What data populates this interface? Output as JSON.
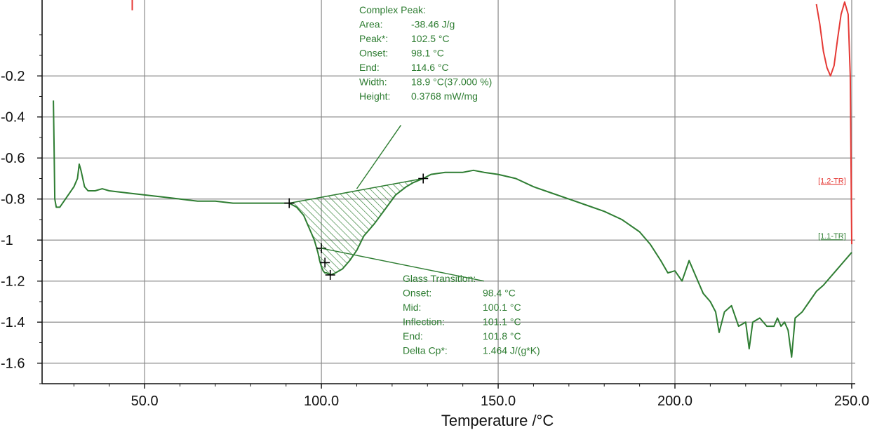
{
  "chart_data": {
    "type": "line",
    "xlabel": "Temperature /°C",
    "ylabel": "",
    "xlim": [
      21,
      251
    ],
    "ylim": [
      -1.7,
      0.17
    ],
    "x_ticks": [
      50,
      100,
      150,
      200,
      250
    ],
    "x_tick_labels": [
      "50.0",
      "100.0",
      "150.0",
      "200.0",
      "250.0"
    ],
    "y_ticks": [
      -0.2,
      -0.4,
      -0.6,
      -0.8,
      -1,
      -1.2,
      -1.4,
      -1.6
    ],
    "y_tick_labels": [
      "-0.2",
      "-0.4",
      "-0.6",
      "-0.8",
      "-1",
      "-1.2",
      "-1.4",
      "-1.6"
    ],
    "grid": true,
    "colors": {
      "dsc": "#2e7d32",
      "red": "#e53935",
      "grid": "#8a8a8a",
      "axis": "#111111"
    },
    "series": [
      {
        "name": "1.1-TR",
        "color": "#2e7d32",
        "x": [
          24.2,
          24.4,
          24.6,
          25,
          26,
          28,
          30,
          31,
          31.5,
          32,
          33,
          34,
          36,
          38,
          40,
          45,
          50,
          55,
          60,
          65,
          70,
          75,
          80,
          85,
          88,
          90.9,
          93,
          95,
          96,
          97,
          98,
          99,
          99.5,
          100,
          100.5,
          101,
          101.5,
          102.5,
          104,
          106,
          108,
          110,
          112,
          115,
          118,
          121,
          124,
          126,
          128.8,
          131,
          135,
          140,
          143,
          146,
          150,
          155,
          160,
          165,
          170,
          175,
          180,
          185,
          190,
          193,
          196,
          198,
          200,
          202,
          204,
          206,
          208,
          210,
          211.5,
          212.5,
          214,
          216,
          218,
          220,
          221,
          222,
          224,
          226,
          228,
          229,
          230,
          231,
          232,
          233,
          234,
          236,
          238,
          240,
          242,
          244,
          246,
          248,
          250
        ],
        "y": [
          -0.32,
          -0.55,
          -0.8,
          -0.84,
          -0.84,
          -0.79,
          -0.74,
          -0.7,
          -0.63,
          -0.66,
          -0.74,
          -0.76,
          -0.76,
          -0.75,
          -0.76,
          -0.77,
          -0.78,
          -0.79,
          -0.8,
          -0.81,
          -0.81,
          -0.82,
          -0.82,
          -0.82,
          -0.82,
          -0.82,
          -0.84,
          -0.88,
          -0.92,
          -0.96,
          -1.0,
          -1.06,
          -1.1,
          -1.13,
          -1.15,
          -1.16,
          -1.16,
          -1.17,
          -1.16,
          -1.14,
          -1.1,
          -1.05,
          -0.98,
          -0.92,
          -0.85,
          -0.78,
          -0.74,
          -0.72,
          -0.7,
          -0.68,
          -0.67,
          -0.67,
          -0.66,
          -0.67,
          -0.68,
          -0.7,
          -0.74,
          -0.77,
          -0.8,
          -0.83,
          -0.86,
          -0.9,
          -0.96,
          -1.02,
          -1.1,
          -1.16,
          -1.15,
          -1.2,
          -1.1,
          -1.18,
          -1.26,
          -1.3,
          -1.35,
          -1.45,
          -1.35,
          -1.32,
          -1.42,
          -1.4,
          -1.53,
          -1.4,
          -1.38,
          -1.42,
          -1.42,
          -1.38,
          -1.42,
          -1.4,
          -1.44,
          -1.57,
          -1.38,
          -1.35,
          -1.3,
          -1.25,
          -1.22,
          -1.18,
          -1.14,
          -1.1,
          -1.06
        ]
      },
      {
        "name": "1.2-TR",
        "color": "#e53935",
        "x": [
          240,
          241,
          242,
          243,
          244,
          245,
          246,
          247,
          248,
          249,
          249.6,
          250
        ],
        "y": [
          0.15,
          0.05,
          -0.08,
          -0.16,
          -0.2,
          -0.15,
          -0.02,
          0.1,
          0.16,
          0.1,
          -0.2,
          -1.02
        ]
      }
    ],
    "hatch_region": {
      "baseline_start": [
        90.9,
        -0.82
      ],
      "baseline_end": [
        128.8,
        -0.7
      ]
    },
    "markers": [
      {
        "x": 90.9,
        "y": -0.82
      },
      {
        "x": 128.8,
        "y": -0.7
      },
      {
        "x": 100,
        "y": -1.04
      },
      {
        "x": 101,
        "y": -1.11
      },
      {
        "x": 102.5,
        "y": -1.17
      }
    ],
    "red_tick": {
      "x": 46.5,
      "y_top": 0.17,
      "y_bottom": 0.12
    },
    "curve_labels": [
      {
        "text": "[1.2-TR]",
        "color": "#e53935",
        "x": 240.5,
        "y": -0.73
      },
      {
        "text": "[1.1-TR]",
        "color": "#2e7d32",
        "x": 240.5,
        "y": -1.0
      }
    ],
    "annotations": {
      "complex_peak": {
        "lines": [
          [
            "Complex Peak:",
            ""
          ],
          [
            "Area:",
            "-38.46 J/g"
          ],
          [
            "Peak*:",
            "102.5 °C"
          ],
          [
            "Onset:",
            "98.1 °C"
          ],
          [
            "End:",
            "114.6 °C"
          ],
          [
            "Width:",
            "18.9 °C(37.000 %)"
          ],
          [
            "Height:",
            "0.3768 mW/mg"
          ]
        ],
        "leader_from": [
          122.5,
          -0.44
        ],
        "leader_to": [
          110,
          -0.75
        ]
      },
      "glass_transition": {
        "lines": [
          [
            "Glass Transition:",
            ""
          ],
          [
            "Onset:",
            "98.4 °C"
          ],
          [
            "Mid:",
            "100.1 °C"
          ],
          [
            "Inflection:",
            "101.1 °C"
          ],
          [
            "End:",
            "101.8 °C"
          ],
          [
            "Delta Cp*:",
            "1.464 J/(g*K)"
          ]
        ],
        "leader_from": [
          100,
          -1.04
        ],
        "leader_to": [
          146,
          -1.2
        ]
      }
    }
  }
}
